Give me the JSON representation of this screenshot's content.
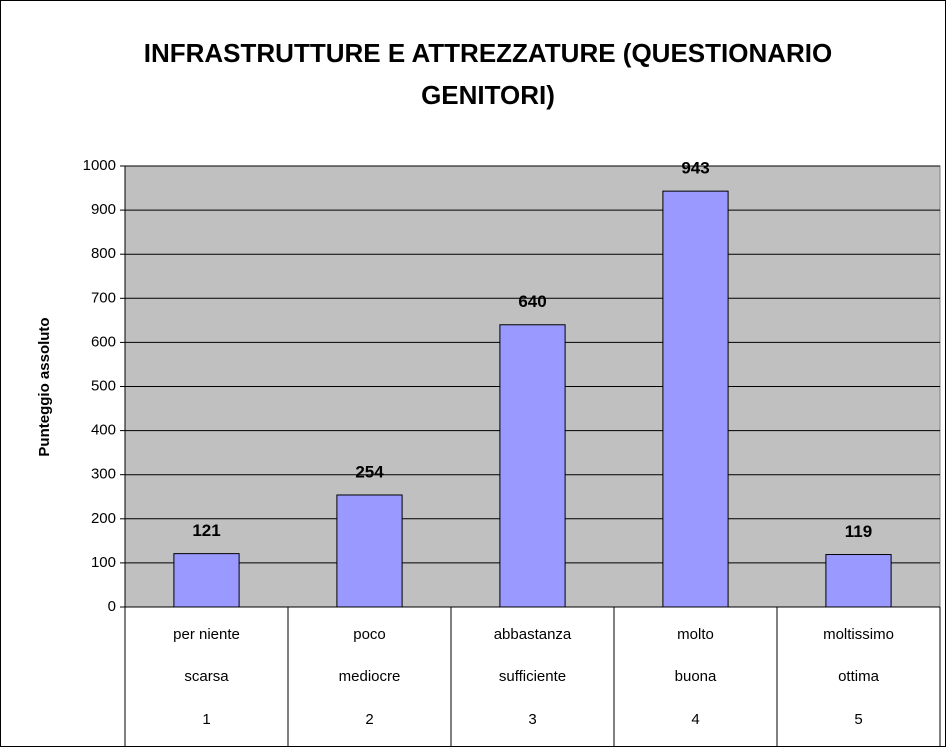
{
  "chart_data": {
    "type": "bar",
    "title": [
      "INFRASTRUTTURE E ATTREZZATURE (QUESTIONARIO",
      "GENITORI)"
    ],
    "ylabel": "Punteggio assoluto",
    "categories": [
      [
        "per niente",
        "scarsa",
        "1"
      ],
      [
        "poco",
        "mediocre",
        "2"
      ],
      [
        "abbastanza",
        "sufficiente",
        "3"
      ],
      [
        "molto",
        "buona",
        "4"
      ],
      [
        "moltissimo",
        "ottima",
        "5"
      ]
    ],
    "values": [
      121,
      254,
      640,
      943,
      119
    ],
    "color": "#9999ff",
    "ylim": [
      0,
      1000
    ],
    "yticks": [
      0,
      100,
      200,
      300,
      400,
      500,
      600,
      700,
      800,
      900,
      1000
    ],
    "grid": true
  }
}
